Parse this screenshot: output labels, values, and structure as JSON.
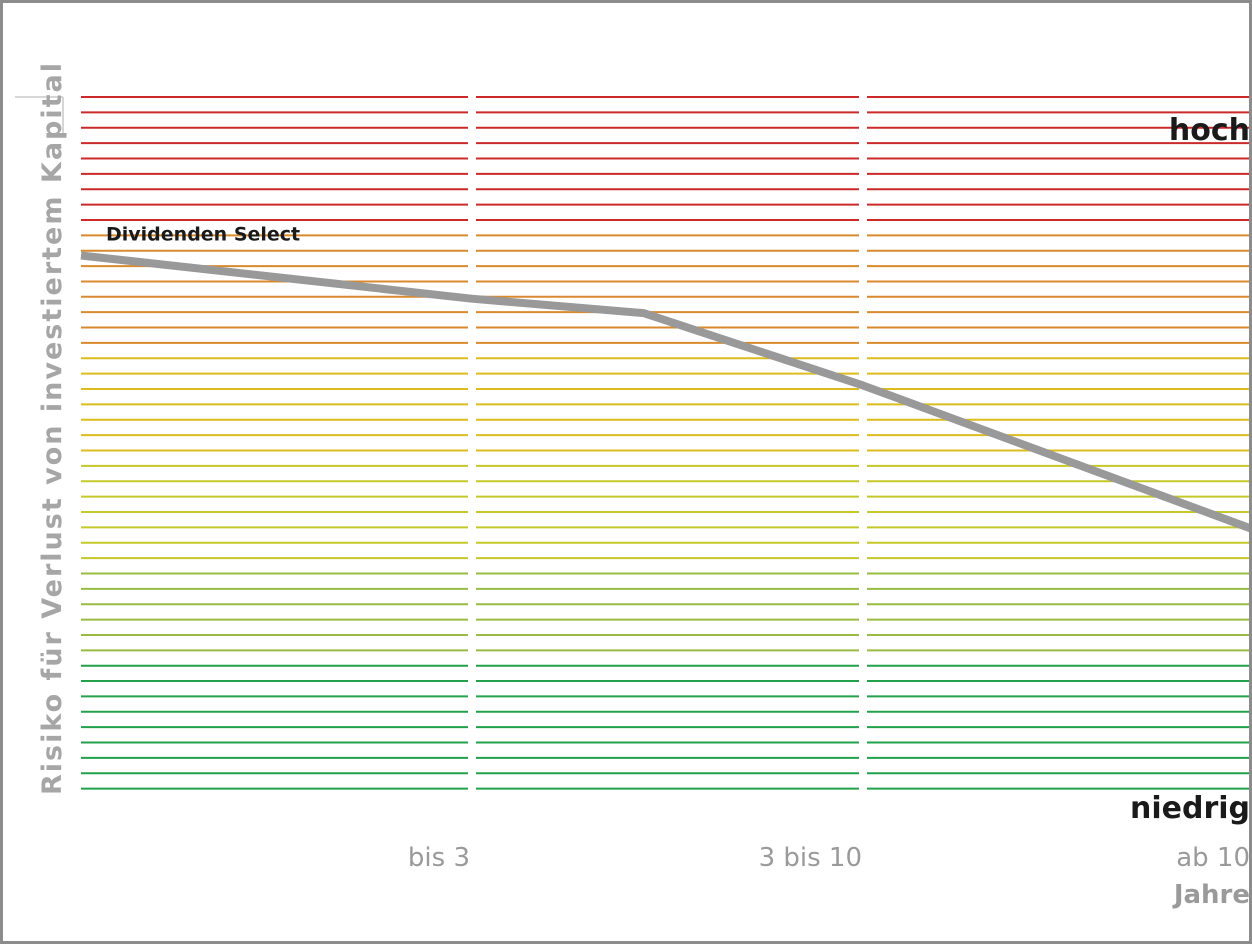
{
  "chart_data": {
    "type": "line",
    "ylabel": "Risiko für Verlust von investiertem Kapital",
    "x_unit_label": "Jahre",
    "categories": [
      "bis 3",
      "3 bis 10",
      "ab 10"
    ],
    "y_level_labels": {
      "high": "hoch",
      "low": "niedrig"
    },
    "ylim": [
      0,
      48
    ],
    "series": [
      {
        "name": "Dividenden Select",
        "color": "#999999",
        "x": [
          0,
          1,
          1.44,
          2,
          3
        ],
        "y": [
          37,
          34,
          33,
          28,
          18
        ]
      }
    ],
    "background_bands": [
      {
        "lines": 9,
        "color": "#cc2a2a"
      },
      {
        "lines": 8,
        "color": "#d88a2e"
      },
      {
        "lines": 7,
        "color": "#dcbc1e"
      },
      {
        "lines": 7,
        "color": "#c4c829"
      },
      {
        "lines": 6,
        "color": "#99bb44"
      },
      {
        "lines": 9,
        "color": "#22a04a"
      }
    ],
    "grid": true
  }
}
